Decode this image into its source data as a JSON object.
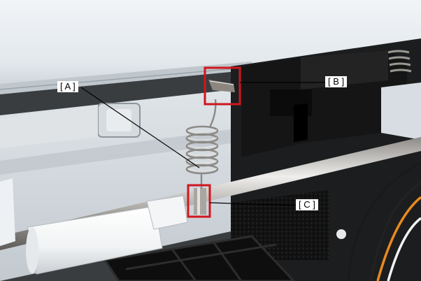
{
  "figure": {
    "subject": "printer-mechanism-photo",
    "callouts": [
      {
        "id": "A",
        "label": "[ A ]"
      },
      {
        "id": "B",
        "label": "[ B ]"
      },
      {
        "id": "C",
        "label": "[ C ]"
      }
    ],
    "colors": {
      "highlight_box": "#d0161e",
      "leader_line": "#000000",
      "label_background": "#ffffff"
    }
  }
}
